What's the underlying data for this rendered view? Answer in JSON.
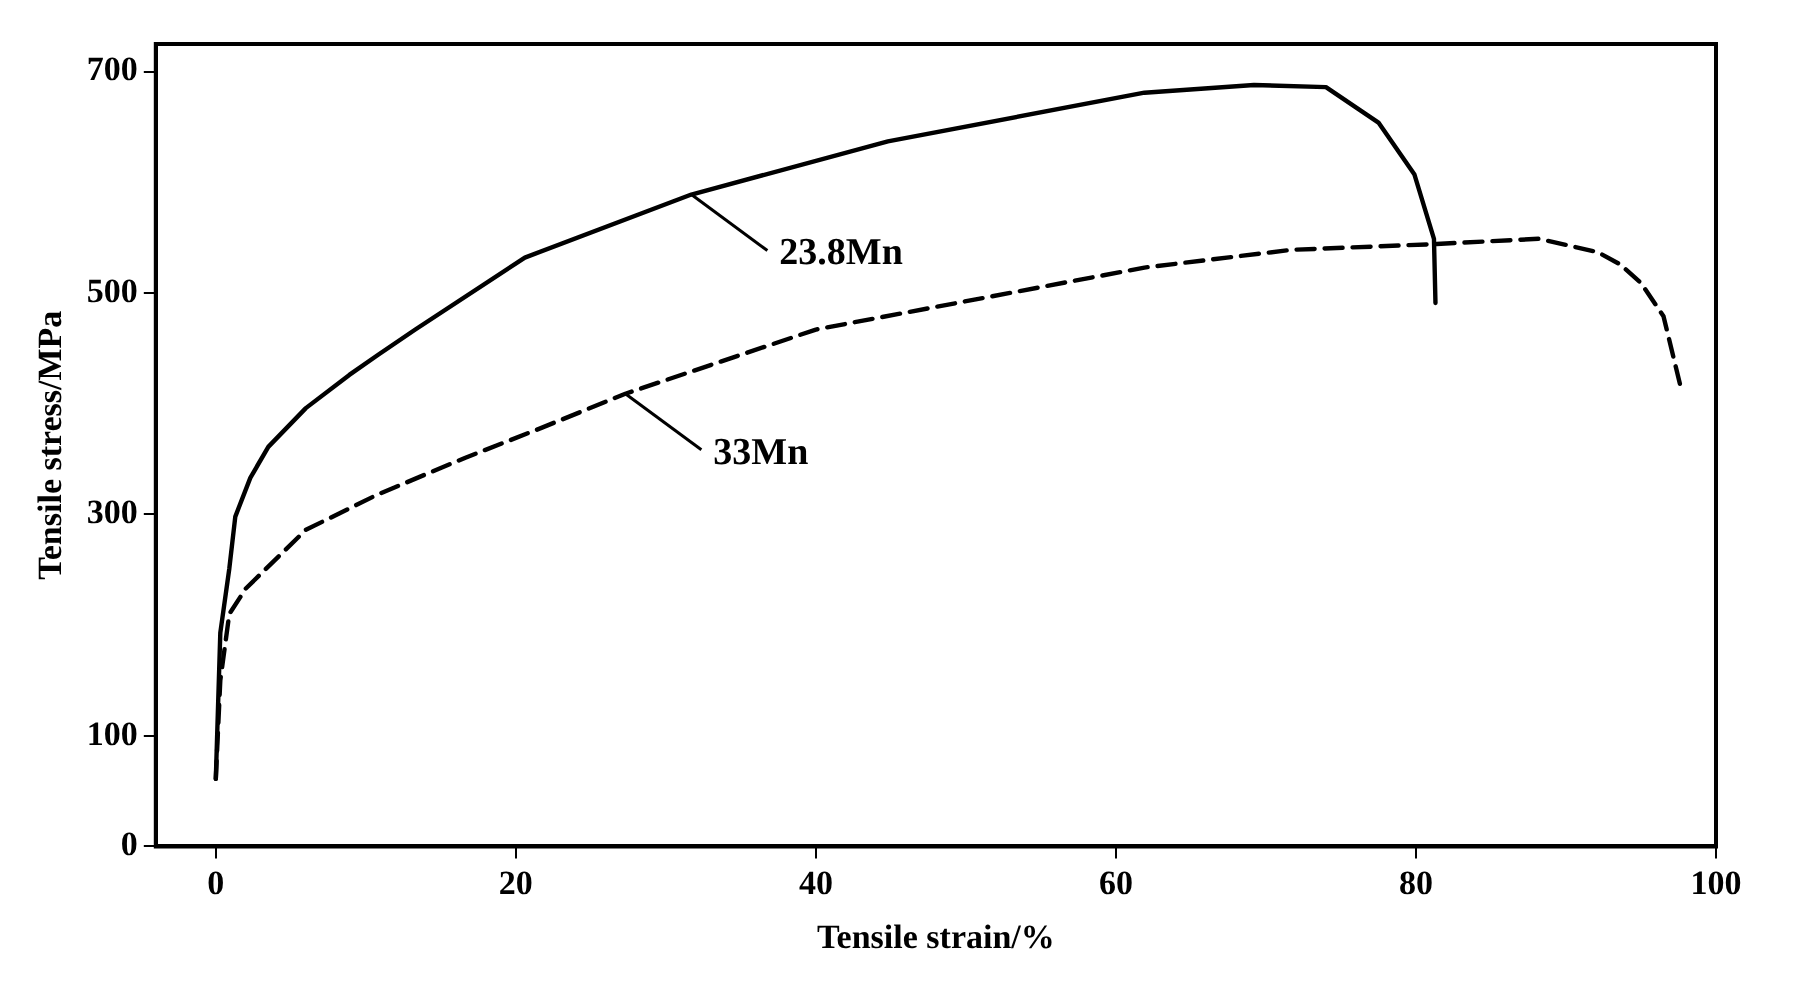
{
  "chart_data": {
    "type": "line",
    "xlabel": "Tensile strain/%",
    "ylabel": "Tensile stress/MPa",
    "xlim": [
      -4,
      100
    ],
    "xticks": [
      0,
      20,
      40,
      60,
      80,
      100
    ],
    "ylim": [
      0,
      725
    ],
    "yticks": [
      0,
      100,
      300,
      500,
      700
    ],
    "grid": false,
    "legend": false,
    "marker": "none",
    "series": [
      {
        "color": "#000000",
        "line_style": "solid",
        "x": [
          0,
          0.3,
          0.9,
          1.3,
          2.3,
          3.5,
          6.0,
          8.9,
          10.8,
          13.3,
          20.6,
          31.7,
          44.8,
          61.9,
          69.2,
          74.0,
          77.5,
          79.9,
          81.2,
          81.3
        ],
        "values": [
          61,
          193,
          251,
          298,
          333,
          361,
          396,
          426,
          444,
          467,
          532,
          589,
          637,
          681,
          688,
          686,
          654,
          607,
          549,
          491
        ]
      },
      {
        "color": "#000000",
        "line_style": "dashed",
        "x": [
          0,
          0.3,
          0.9,
          2.0,
          6.0,
          10.8,
          16.6,
          21.5,
          27.3,
          40,
          61.9,
          71.7,
          80.9,
          88.2,
          92.1,
          93.6,
          95,
          96.5,
          97.7
        ],
        "values": [
          61,
          150,
          210,
          233,
          286,
          318,
          351,
          377,
          409,
          467,
          523,
          539,
          544,
          549,
          537,
          526,
          509,
          479,
          412
        ]
      }
    ],
    "annotations": [
      {
        "text": "23.8Mn",
        "x": 31.7,
        "y": 589
      },
      {
        "text": "33Mn",
        "x": 27.3,
        "y": 409
      }
    ]
  }
}
